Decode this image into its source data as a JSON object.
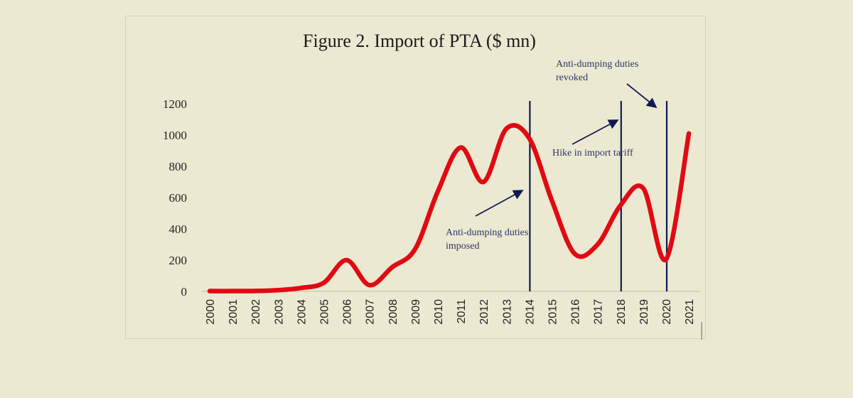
{
  "chart_data": {
    "type": "line",
    "title": "Figure 2. Import of PTA ($ mn)",
    "xlabel": "",
    "ylabel": "",
    "ylim": [
      0,
      1200
    ],
    "yticks": [
      0,
      200,
      400,
      600,
      800,
      1000,
      1200
    ],
    "grid": false,
    "smooth": true,
    "categories": [
      "2000",
      "2001",
      "2002",
      "2003",
      "2004",
      "2005",
      "2006",
      "2007",
      "2008",
      "2009",
      "2010",
      "2011",
      "2012",
      "2013",
      "2014",
      "2015",
      "2016",
      "2017",
      "2018",
      "2019",
      "2020",
      "2021"
    ],
    "series": [
      {
        "name": "Import of PTA ($ mn)",
        "color": "#e00a13",
        "values": [
          2,
          2,
          3,
          8,
          22,
          55,
          200,
          40,
          155,
          270,
          640,
          920,
          700,
          1040,
          980,
          580,
          240,
          300,
          550,
          660,
          205,
          1010
        ]
      }
    ],
    "vlines": [
      {
        "x": "2014",
        "color": "#0f1a52"
      },
      {
        "x": "2018",
        "color": "#0f1a52"
      },
      {
        "x": "2020",
        "color": "#0f1a52"
      }
    ],
    "annotations": [
      {
        "lines": [
          "Anti-dumping duties",
          "imposed"
        ],
        "target": "2014"
      },
      {
        "lines": [
          "Hike in import tariff"
        ],
        "target": "2018"
      },
      {
        "lines": [
          "Anti-dumping duties",
          "revoked"
        ],
        "target": "2020"
      }
    ]
  }
}
